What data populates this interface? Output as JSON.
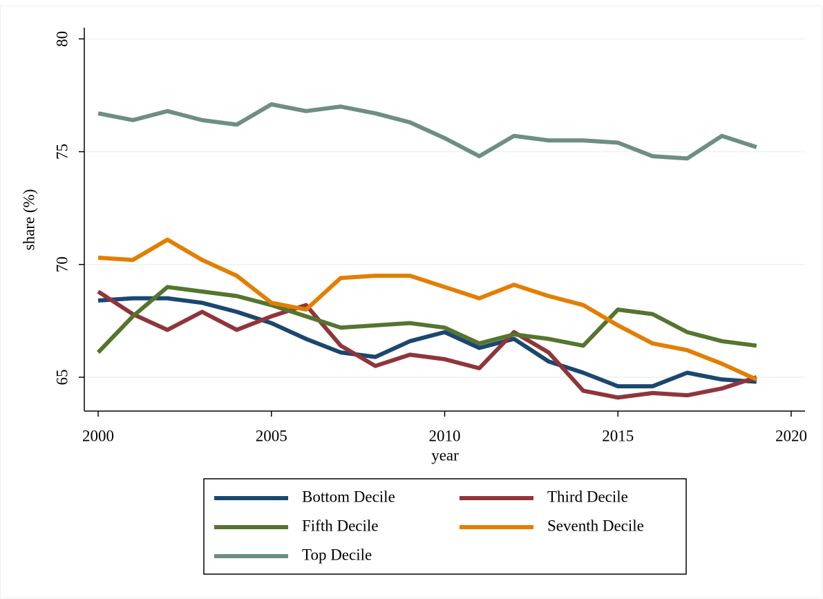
{
  "chart_data": {
    "type": "line",
    "x_label": "year",
    "y_label": "share (%)",
    "x": [
      2000,
      2001,
      2002,
      2003,
      2004,
      2005,
      2006,
      2007,
      2008,
      2009,
      2010,
      2011,
      2012,
      2013,
      2014,
      2015,
      2016,
      2017,
      2018,
      2019
    ],
    "series": [
      {
        "name": "Bottom Decile",
        "color": "#1a476f",
        "values": [
          68.4,
          68.5,
          68.5,
          68.3,
          67.9,
          67.4,
          66.7,
          66.1,
          65.9,
          66.6,
          67.0,
          66.3,
          66.7,
          65.7,
          65.2,
          64.6,
          64.6,
          65.2,
          64.9,
          64.8
        ]
      },
      {
        "name": "Third Decile",
        "color": "#90353b",
        "values": [
          68.8,
          67.8,
          67.1,
          67.9,
          67.1,
          67.7,
          68.2,
          66.4,
          65.5,
          66.0,
          65.8,
          65.4,
          67.0,
          66.1,
          64.4,
          64.1,
          64.3,
          64.2,
          64.5,
          65.0
        ]
      },
      {
        "name": "Fifth Decile",
        "color": "#55752f",
        "values": [
          66.1,
          67.7,
          69.0,
          68.8,
          68.6,
          68.2,
          67.7,
          67.2,
          67.3,
          67.4,
          67.2,
          66.5,
          66.9,
          66.7,
          66.4,
          68.0,
          67.8,
          67.0,
          66.6,
          66.4
        ]
      },
      {
        "name": "Seventh Decile",
        "color": "#e37e00",
        "values": [
          70.3,
          70.2,
          71.1,
          70.2,
          69.5,
          68.3,
          68.0,
          69.4,
          69.5,
          69.5,
          69.0,
          68.5,
          69.1,
          68.6,
          68.2,
          67.3,
          66.5,
          66.2,
          65.6,
          64.9
        ]
      },
      {
        "name": "Top Decile",
        "color": "#6e8e84",
        "values": [
          76.7,
          76.4,
          76.8,
          76.4,
          76.2,
          77.1,
          76.8,
          77.0,
          76.7,
          76.3,
          75.6,
          74.8,
          75.7,
          75.5,
          75.5,
          75.4,
          74.8,
          74.7,
          75.7,
          75.2
        ]
      }
    ],
    "xlim": [
      1999.6,
      2020.4
    ],
    "xticks": [
      2000,
      2005,
      2010,
      2015,
      2020
    ],
    "ylim": [
      63.5,
      80.5
    ],
    "yticks": [
      65,
      70,
      75,
      80
    ],
    "grid": true,
    "legend_position": "bottom"
  }
}
